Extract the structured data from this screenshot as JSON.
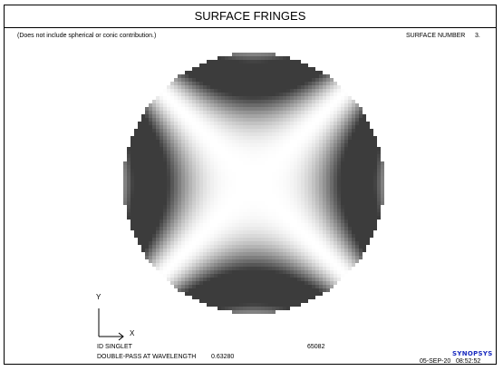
{
  "title": "SURFACE FRINGES",
  "note": "(Does not include spherical or conic contribution.)",
  "surface": {
    "label": "SURFACE NUMBER",
    "value": "3."
  },
  "axes": {
    "y": "Y",
    "x": "X"
  },
  "lens_name": "ID SINGLET",
  "wavelength": {
    "label": "DOUBLE-PASS AT WAVELENGTH",
    "value": "0.63280"
  },
  "code": "65082",
  "brand": "SYNOPSYS",
  "timestamp": {
    "date": "05-SEP-20",
    "time": "08:52:52"
  },
  "colors": {
    "frame": "#000000",
    "brand": "#1a2bbf"
  }
}
